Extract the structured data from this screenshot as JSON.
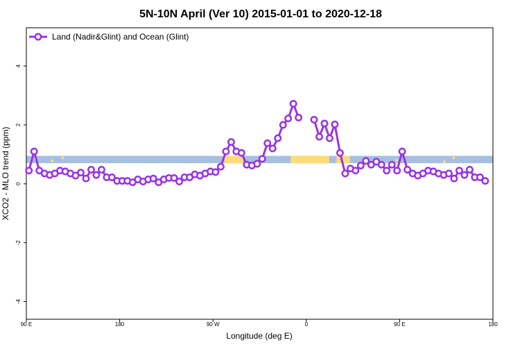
{
  "chart_data": {
    "type": "line",
    "title": "5N-10N April (Ver 10)   2015-01-01 to 2020-12-18",
    "xlabel": "Longitude (deg E)",
    "ylabel": "XCO2 - MLO trend (ppm)",
    "xlim": [
      90,
      450
    ],
    "ylim": [
      -4.6,
      5.3
    ],
    "x_ticks": [
      {
        "value": 90,
        "label": "90 E"
      },
      {
        "value": 180,
        "label": "180"
      },
      {
        "value": 270,
        "label": "90 W"
      },
      {
        "value": 360,
        "label": "0"
      },
      {
        "value": 450,
        "label": "90 E"
      },
      {
        "value": 540,
        "label": "180"
      }
    ],
    "y_ticks": [
      {
        "value": -4,
        "label": "-4"
      },
      {
        "value": -2,
        "label": "-2"
      },
      {
        "value": 0,
        "label": "0"
      },
      {
        "value": 2,
        "label": "2"
      },
      {
        "value": 4,
        "label": "4"
      }
    ],
    "legend_position": "top-left",
    "series": [
      {
        "name": "Land (Nadir&Glint) and Ocean (Glint)",
        "color": "#9932e6",
        "points": [
          [
            92.5,
            0.45
          ],
          [
            97.5,
            1.1
          ],
          [
            102.5,
            0.45
          ],
          [
            107.5,
            0.35
          ],
          [
            112.5,
            0.3
          ],
          [
            117.5,
            0.35
          ],
          [
            122.5,
            0.45
          ],
          [
            127.5,
            0.42
          ],
          [
            132.5,
            0.35
          ],
          [
            137.5,
            0.28
          ],
          [
            142.5,
            0.38
          ],
          [
            147.5,
            0.18
          ],
          [
            152.5,
            0.48
          ],
          [
            157.5,
            0.3
          ],
          [
            162.5,
            0.48
          ],
          [
            167.5,
            0.22
          ],
          [
            172.5,
            0.22
          ],
          [
            177.5,
            0.1
          ],
          [
            182.5,
            0.1
          ],
          [
            187.5,
            0.1
          ],
          [
            192.5,
            0.05
          ],
          [
            197.5,
            0.15
          ],
          [
            202.5,
            0.08
          ],
          [
            207.5,
            0.15
          ],
          [
            212.5,
            0.18
          ],
          [
            217.5,
            0.05
          ],
          [
            222.5,
            0.15
          ],
          [
            227.5,
            0.2
          ],
          [
            232.5,
            0.2
          ],
          [
            237.5,
            0.08
          ],
          [
            242.5,
            0.22
          ],
          [
            247.5,
            0.22
          ],
          [
            252.5,
            0.32
          ],
          [
            257.5,
            0.28
          ],
          [
            262.5,
            0.35
          ],
          [
            267.5,
            0.42
          ],
          [
            272.5,
            0.4
          ],
          [
            277.5,
            0.58
          ],
          [
            282.5,
            1.1
          ],
          [
            287.5,
            1.42
          ],
          [
            292.5,
            1.1
          ],
          [
            297.5,
            1.05
          ],
          [
            302.5,
            0.65
          ],
          [
            307.5,
            0.62
          ],
          [
            312.5,
            0.68
          ],
          [
            317.5,
            0.85
          ],
          [
            322.5,
            1.38
          ],
          [
            327.5,
            1.2
          ],
          [
            332.5,
            1.55
          ],
          [
            337.5,
            2.0
          ],
          [
            342.5,
            2.22
          ],
          [
            347.5,
            2.72
          ],
          [
            352.5,
            2.25
          ],
          null,
          [
            367.5,
            2.18
          ],
          [
            372.5,
            1.6
          ],
          [
            377.5,
            2.05
          ],
          [
            382.5,
            1.55
          ],
          [
            387.5,
            2.02
          ],
          [
            392.5,
            1.05
          ],
          [
            397.5,
            0.35
          ],
          [
            402.5,
            0.52
          ],
          [
            407.5,
            0.45
          ],
          [
            412.5,
            0.62
          ],
          [
            417.5,
            0.78
          ],
          [
            422.5,
            0.65
          ],
          [
            427.5,
            0.75
          ],
          [
            432.5,
            0.65
          ],
          [
            437.5,
            0.45
          ],
          [
            442.5,
            0.65
          ],
          [
            447.5,
            0.45
          ],
          [
            452.5,
            1.1
          ],
          [
            457.5,
            0.48
          ],
          [
            462.5,
            0.35
          ],
          [
            467.5,
            0.28
          ],
          [
            472.5,
            0.35
          ],
          [
            477.5,
            0.45
          ],
          [
            482.5,
            0.42
          ],
          [
            487.5,
            0.35
          ],
          [
            492.5,
            0.3
          ],
          [
            497.5,
            0.35
          ],
          [
            502.5,
            0.18
          ],
          [
            507.5,
            0.45
          ],
          [
            512.5,
            0.3
          ],
          [
            517.5,
            0.48
          ],
          [
            522.5,
            0.22
          ],
          [
            527.5,
            0.22
          ],
          [
            532.5,
            0.1
          ]
        ]
      }
    ],
    "background_map": {
      "ocean_color": "#a7bfdf",
      "land_color": "#fddb7a",
      "y_range": [
        0.7,
        0.95
      ],
      "land_spans": [
        [
          281,
          299
        ],
        [
          345,
          382
        ],
        [
          389,
          402
        ]
      ],
      "land_specks": [
        [
          99,
          0.85
        ],
        [
          115,
          0.78
        ],
        [
          125,
          0.88
        ],
        [
          447,
          0.8
        ],
        [
          493,
          0.75
        ],
        [
          502,
          0.88
        ]
      ]
    }
  }
}
